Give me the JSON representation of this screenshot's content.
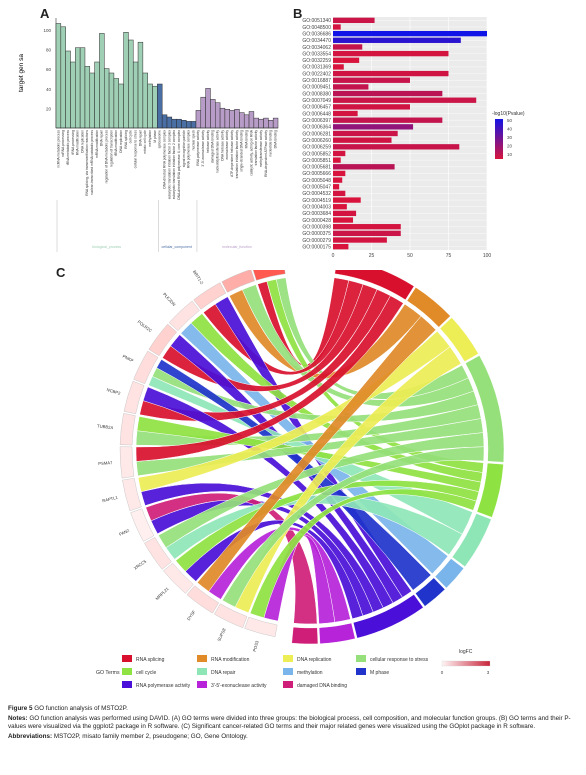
{
  "panelA": {
    "label": "A",
    "ylabel": "target gen sa",
    "yticks": [
      "100",
      "80",
      "60",
      "40",
      "20"
    ],
    "groups": [
      {
        "name": "biological_process",
        "color": "#9fcfb4",
        "count": 21
      },
      {
        "name": "cellular_component",
        "color": "#4a6fa5",
        "count": 8
      },
      {
        "name": "molecular_function",
        "color": "#b79cc7",
        "count": 17
      }
    ],
    "bars": [
      {
        "label": "ncRNA metabolic process",
        "value": 95
      },
      {
        "label": "ncRNA processing",
        "value": 92
      },
      {
        "label": "tRNA metabolic process",
        "value": 70
      },
      {
        "label": "tRNA processing",
        "value": 60
      },
      {
        "label": "RNA modification",
        "value": 73
      },
      {
        "label": "DNA replication",
        "value": 73
      },
      {
        "label": "RNA splicing, via transesterification reactions",
        "value": 56
      },
      {
        "label": "nuclear-transcribed mRNA catabolic process",
        "value": 50
      },
      {
        "label": "mRNA modification",
        "value": 60
      },
      {
        "label": "DNA repair",
        "value": 86
      },
      {
        "label": "regulation of DNA metabolic process",
        "value": 54
      },
      {
        "label": "regulation of transcription",
        "value": 50
      },
      {
        "label": "tRNA modification",
        "value": 45
      },
      {
        "label": "DNA replication",
        "value": 40
      },
      {
        "label": "RNA splicing",
        "value": 87
      },
      {
        "label": "cell cycle",
        "value": 80
      },
      {
        "label": "cellular response to stress",
        "value": 60
      },
      {
        "label": "DNA repair",
        "value": 78
      },
      {
        "label": "mitotic cell cycle",
        "value": 50
      },
      {
        "label": "methylation",
        "value": 40
      },
      {
        "label": "M phase",
        "value": 38
      },
      {
        "label": "spliceosome",
        "value": 40
      },
      {
        "label": "DNA-directed RNA polymerase complex",
        "value": 12
      },
      {
        "label": "eukaryotic translation initiation factor 3 complex",
        "value": 10
      },
      {
        "label": "eukaryotic translation initiation factor 2 complex",
        "value": 8
      },
      {
        "label": "DNA-directed RNA polymerase II, core complex",
        "value": 8
      },
      {
        "label": "signal recognition particle",
        "value": 7
      },
      {
        "label": "RNA polymerase complex",
        "value": 6
      },
      {
        "label": "nuclear speck",
        "value": 6
      },
      {
        "label": "RNA polymerase activity",
        "value": 16
      },
      {
        "label": "3'-5'-exonuclease activity",
        "value": 28
      },
      {
        "label": "helicase activity",
        "value": 36
      },
      {
        "label": "damaged DNA binding",
        "value": 26
      },
      {
        "label": "nucleotidyltransferase activity",
        "value": 23
      },
      {
        "label": "DNA helicase activity",
        "value": 18
      },
      {
        "label": "exonuclease activity",
        "value": 17
      },
      {
        "label": "ATP-dependent helicase activity",
        "value": 16
      },
      {
        "label": "translation initiation factor activity",
        "value": 17
      },
      {
        "label": "single-stranded DNA binding",
        "value": 14
      },
      {
        "label": "RNA binding",
        "value": 12
      },
      {
        "label": "catalytic activity, acting on RNA",
        "value": 15
      },
      {
        "label": "translation factor activity",
        "value": 9
      },
      {
        "label": "methyltransferase activity",
        "value": 8
      },
      {
        "label": "RNA-dependent ATPase activity",
        "value": 9
      },
      {
        "label": "nucleotide binding",
        "value": 7
      },
      {
        "label": "DNA binding",
        "value": 9
      }
    ]
  },
  "panelB": {
    "label": "B",
    "legend_title": "-log10(Pvalue)",
    "legend_ticks": [
      "50",
      "40",
      "30",
      "20",
      "10"
    ],
    "xticks": [
      "0",
      "25",
      "50",
      "75",
      "100"
    ],
    "terms": [
      {
        "id": "GO:0051340",
        "value": 27,
        "p": 8
      },
      {
        "id": "GO:0048500",
        "value": 5,
        "p": 6
      },
      {
        "id": "GO:0036686",
        "value": 100,
        "p": 52
      },
      {
        "id": "GO:0034470",
        "value": 83,
        "p": 46
      },
      {
        "id": "GO:0034062",
        "value": 19,
        "p": 10
      },
      {
        "id": "GO:0033554",
        "value": 75,
        "p": 6
      },
      {
        "id": "GO:0032259",
        "value": 17,
        "p": 5
      },
      {
        "id": "GO:0031369",
        "value": 7,
        "p": 5
      },
      {
        "id": "GO:0022402",
        "value": 75,
        "p": 7
      },
      {
        "id": "GO:0016887",
        "value": 50,
        "p": 9
      },
      {
        "id": "GO:0009451",
        "value": 23,
        "p": 10
      },
      {
        "id": "GO:0008380",
        "value": 71,
        "p": 12
      },
      {
        "id": "GO:0007049",
        "value": 93,
        "p": 8
      },
      {
        "id": "GO:0006457",
        "value": 50,
        "p": 7
      },
      {
        "id": "GO:0006448",
        "value": 16,
        "p": 6
      },
      {
        "id": "GO:0006397",
        "value": 71,
        "p": 10
      },
      {
        "id": "GO:0006364",
        "value": 52,
        "p": 22
      },
      {
        "id": "GO:0006281",
        "value": 42,
        "p": 8
      },
      {
        "id": "GO:0006260",
        "value": 38,
        "p": 7
      },
      {
        "id": "GO:0006259",
        "value": 82,
        "p": 9
      },
      {
        "id": "GO:0005852",
        "value": 8,
        "p": 6
      },
      {
        "id": "GO:0005851",
        "value": 5,
        "p": 5
      },
      {
        "id": "GO:0005681",
        "value": 40,
        "p": 12
      },
      {
        "id": "GO:0005666",
        "value": 8,
        "p": 5
      },
      {
        "id": "GO:0005048",
        "value": 6,
        "p": 5
      },
      {
        "id": "GO:0005047",
        "value": 4,
        "p": 5
      },
      {
        "id": "GO:0004532",
        "value": 8,
        "p": 6
      },
      {
        "id": "GO:0004519",
        "value": 18,
        "p": 5
      },
      {
        "id": "GO:0004003",
        "value": 9,
        "p": 5
      },
      {
        "id": "GO:0003684",
        "value": 15,
        "p": 6
      },
      {
        "id": "GO:0000428",
        "value": 13,
        "p": 5
      },
      {
        "id": "GO:0000398",
        "value": 44,
        "p": 6
      },
      {
        "id": "GO:0000375",
        "value": 44,
        "p": 8
      },
      {
        "id": "GO:0000279",
        "value": 35,
        "p": 6
      },
      {
        "id": "GO:0000175",
        "value": 10,
        "p": 5
      }
    ]
  },
  "panelC": {
    "label": "C",
    "genes": [
      "RECQL4",
      "CDKN",
      "BRIT1-2",
      "PLK2DN",
      "POLR2C",
      "PNKP",
      "NCBP2",
      "TUBB2A",
      "PSMA7",
      "RAPTL1",
      "PAN2",
      "XRCC5",
      "MRPL21",
      "DYSF",
      "SUPS8",
      "POS3"
    ],
    "gene_logfc": [
      2.6,
      1.2,
      0.6,
      0.3,
      0.6,
      0.4,
      0.3,
      0.3,
      0.2,
      0.2,
      0.1,
      0.3,
      0.2,
      0.4,
      0.3,
      0.2
    ],
    "terms": [
      {
        "name": "RNA splicing",
        "color": "#d8102e",
        "weight": 9
      },
      {
        "name": "RNA modification",
        "color": "#e08a28",
        "weight": 5
      },
      {
        "name": "DNA replication",
        "color": "#eded55",
        "weight": 5
      },
      {
        "name": "cellular response to stress",
        "color": "#95e07a",
        "weight": 12
      },
      {
        "name": "cell cycle",
        "color": "#8ee241",
        "weight": 6
      },
      {
        "name": "DNA repair",
        "color": "#8ee6b7",
        "weight": 6
      },
      {
        "name": "methylation",
        "color": "#79b4ea",
        "weight": 3
      },
      {
        "name": "M phase",
        "color": "#2034cc",
        "weight": 3
      },
      {
        "name": "RNA polymerase activity",
        "color": "#4a0fd8",
        "weight": 8
      },
      {
        "name": "3'-5'-exonuclease activity",
        "color": "#b623d8",
        "weight": 4
      },
      {
        "name": "damaged DNA binding",
        "color": "#cf1e78",
        "weight": 3
      }
    ],
    "links": [
      [
        0,
        0
      ],
      [
        0,
        4
      ],
      [
        0,
        3
      ],
      [
        1,
        1
      ],
      [
        1,
        3
      ],
      [
        2,
        0
      ],
      [
        2,
        8
      ],
      [
        3,
        6
      ],
      [
        3,
        4
      ],
      [
        4,
        0
      ],
      [
        4,
        8
      ],
      [
        5,
        5
      ],
      [
        5,
        3
      ],
      [
        5,
        7
      ],
      [
        6,
        0
      ],
      [
        6,
        8
      ],
      [
        7,
        3
      ],
      [
        7,
        4
      ],
      [
        8,
        3
      ],
      [
        8,
        0
      ],
      [
        9,
        8
      ],
      [
        9,
        2
      ],
      [
        10,
        8
      ],
      [
        10,
        10
      ],
      [
        11,
        5
      ],
      [
        11,
        3
      ],
      [
        12,
        8
      ],
      [
        12,
        4
      ],
      [
        13,
        9
      ],
      [
        13,
        1
      ],
      [
        14,
        2
      ],
      [
        14,
        3
      ],
      [
        15,
        9
      ],
      [
        15,
        4
      ]
    ],
    "legend_label": "GO Terms",
    "logfc_title": "logFC",
    "logfc_min": "0",
    "logfc_max": "3"
  },
  "caption": {
    "figure": "Figure 5",
    "figure_text": "GO function analysis of MSTO2P.",
    "notes_label": "Notes:",
    "notes_text": "GO function analysis was performed using DAVID. (A) GO terms were divided into three groups: the biological process, cell composition, and molecular function groups. (B) GO terms and their P-values were visualized via the ggplot2 package in R software. (C) Significant cancer-related GO terms and their major related genes were visualized using the GOplot package in R software.",
    "abbr_label": "Abbreviations:",
    "abbr_text": "MSTO2P, misato family member 2, pseudogene; GO, Gene Ontology."
  }
}
